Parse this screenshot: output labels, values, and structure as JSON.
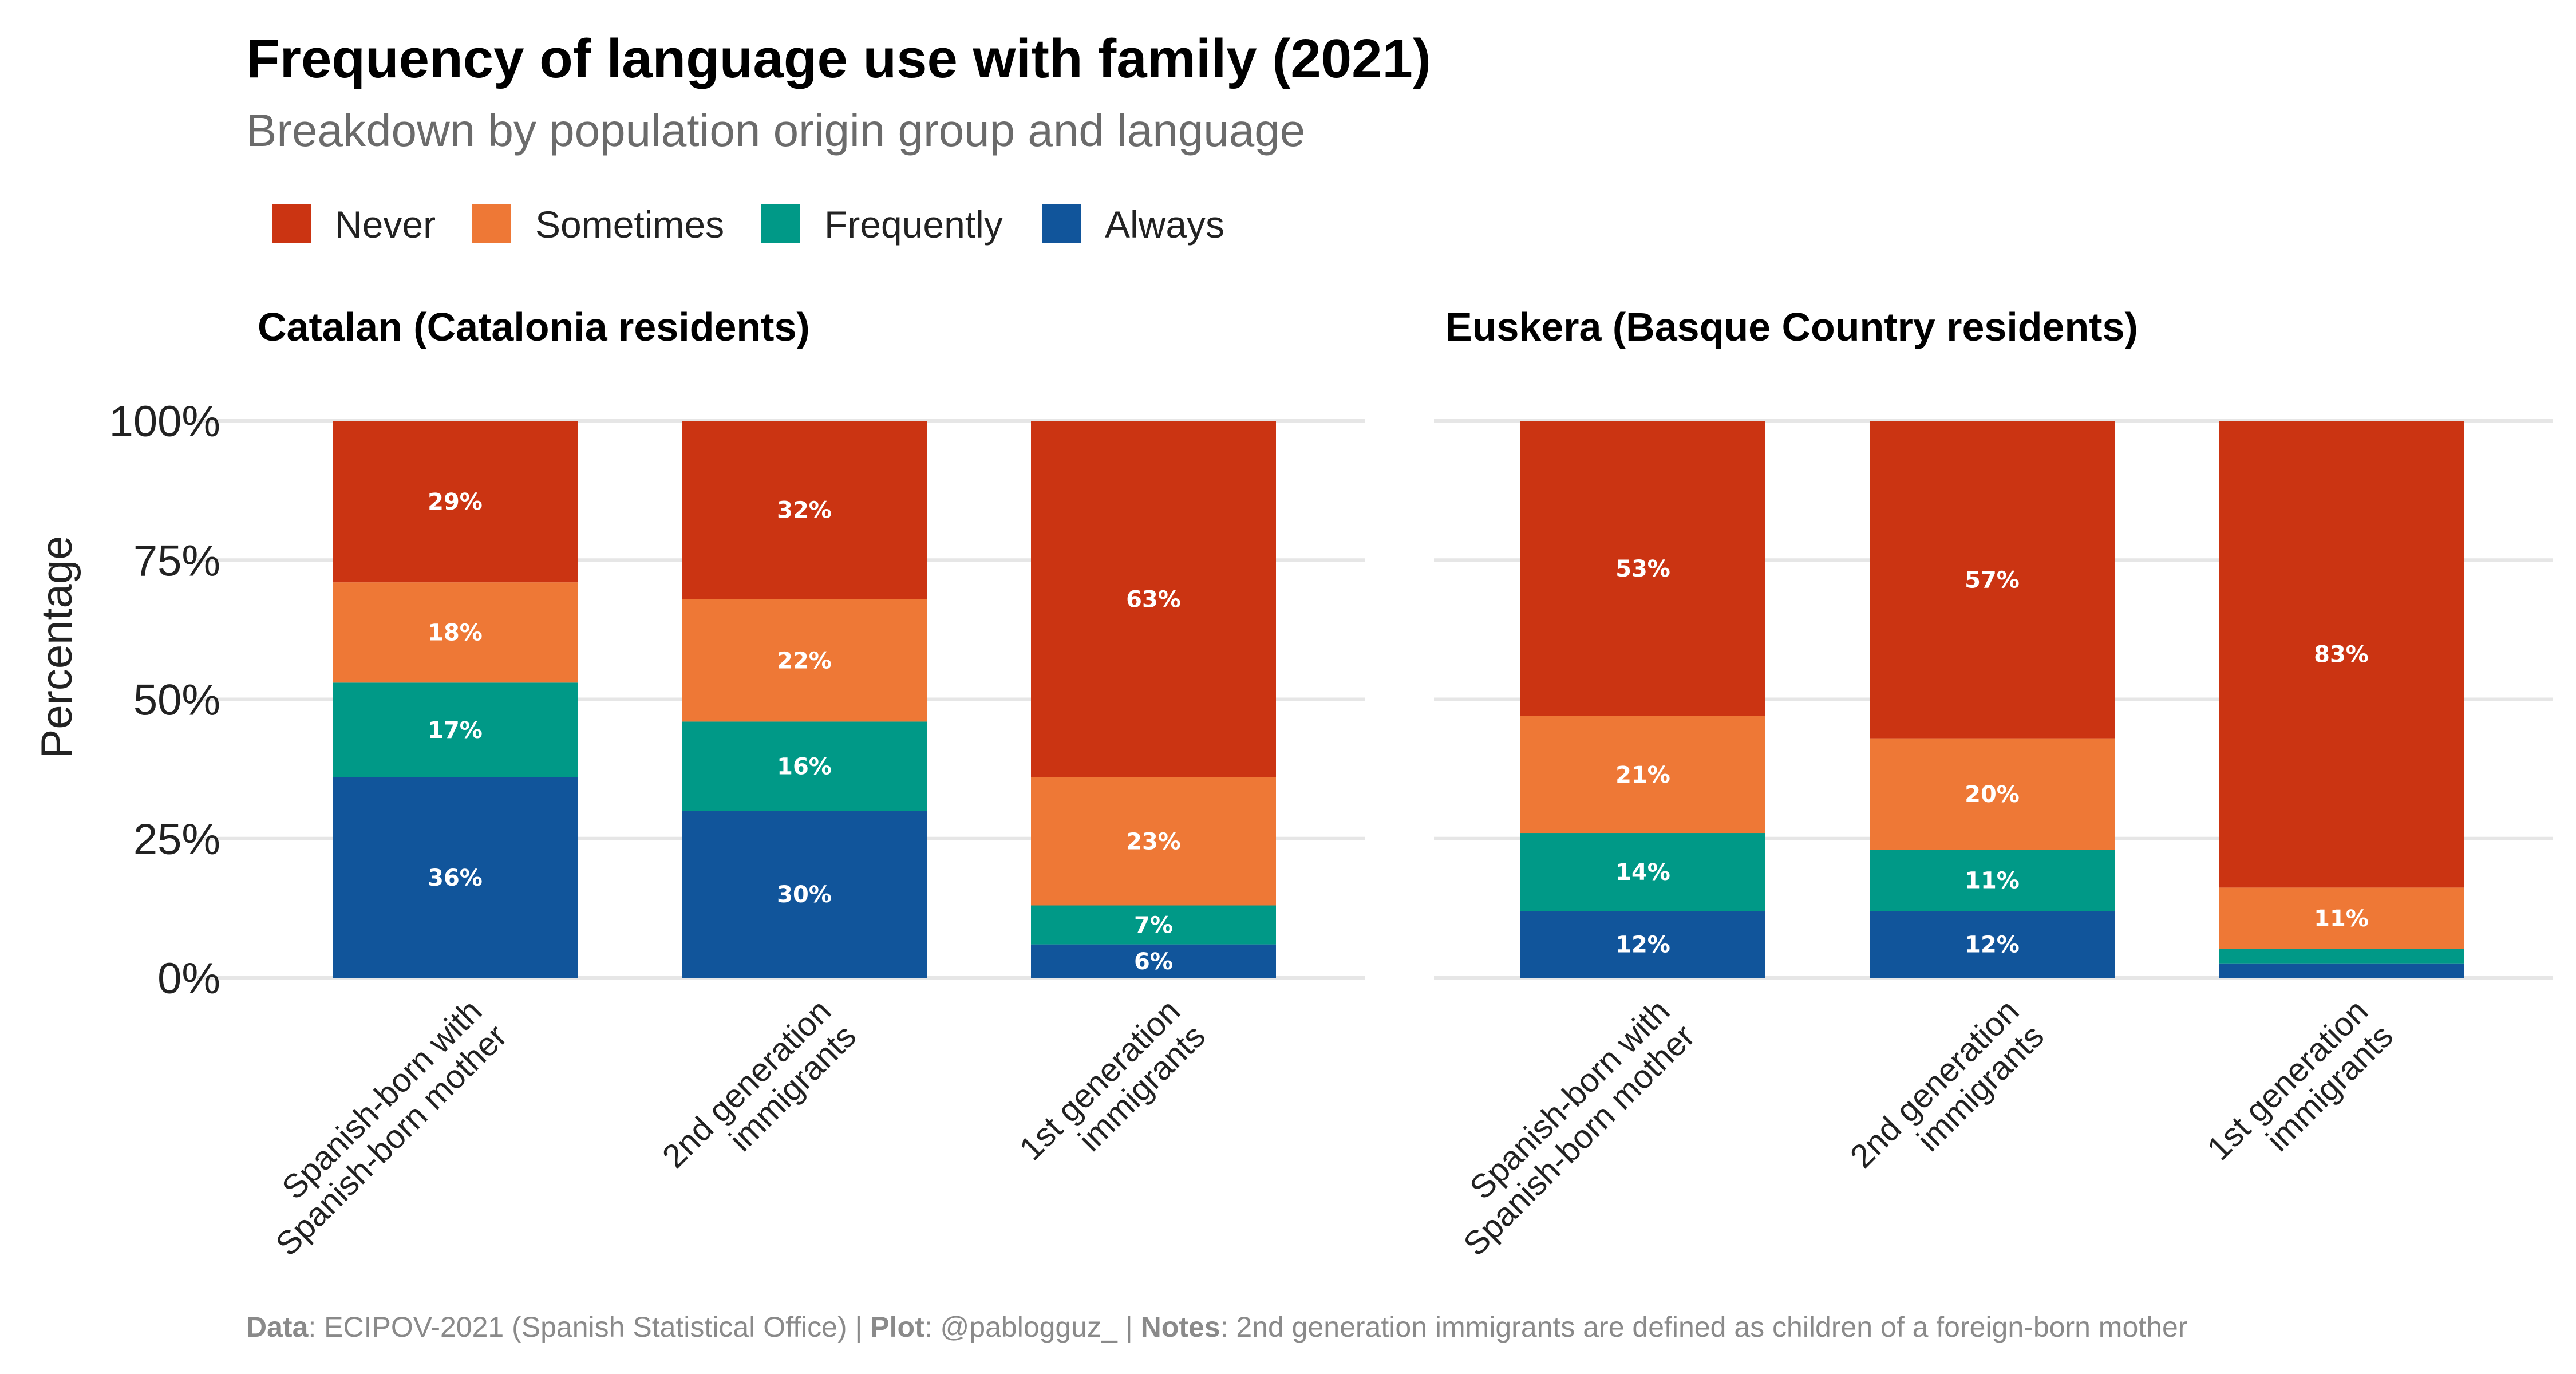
{
  "title": "Frequency of language use with family (2021)",
  "subtitle": "Breakdown by population origin group and language",
  "legend": [
    {
      "label": "Never",
      "color": "#cb3412"
    },
    {
      "label": "Sometimes",
      "color": "#ee7836"
    },
    {
      "label": "Frequently",
      "color": "#009987"
    },
    {
      "label": "Always",
      "color": "#11559b"
    }
  ],
  "y_axis": {
    "title": "Percentage",
    "ticks": [
      "0%",
      "25%",
      "50%",
      "75%",
      "100%"
    ],
    "tick_values": [
      0,
      25,
      50,
      75,
      100
    ]
  },
  "caption": {
    "data_key": "Data",
    "data_value": ": ECIPOV-2021 (Spanish Statistical Office) | ",
    "plot_key": "Plot",
    "plot_value": ": @pablogguz_ | ",
    "notes_key": "Notes",
    "notes_value": ": 2nd generation immigrants are defined as children of a foreign-born mother"
  },
  "chart_data": [
    {
      "type": "bar",
      "stacked": true,
      "title": "Catalan (Catalonia residents)",
      "ylabel": "Percentage",
      "ylim": [
        0,
        100
      ],
      "categories": [
        [
          "Spanish-born with",
          "Spanish-born mother"
        ],
        [
          "2nd generation",
          "immigrants"
        ],
        [
          "1st generation",
          "immigrants"
        ]
      ],
      "series": [
        {
          "name": "Always",
          "values": [
            36,
            30,
            6
          ],
          "labels": [
            "36%",
            "30%",
            "6%"
          ]
        },
        {
          "name": "Frequently",
          "values": [
            17,
            16,
            7
          ],
          "labels": [
            "17%",
            "16%",
            "7%"
          ]
        },
        {
          "name": "Sometimes",
          "values": [
            18,
            22,
            23
          ],
          "labels": [
            "18%",
            "22%",
            "23%"
          ]
        },
        {
          "name": "Never",
          "values": [
            29,
            32,
            63
          ],
          "labels": [
            "29%",
            "32%",
            "63%"
          ]
        }
      ]
    },
    {
      "type": "bar",
      "stacked": true,
      "title": "Euskera (Basque Country residents)",
      "ylabel": "Percentage",
      "ylim": [
        0,
        100
      ],
      "categories": [
        [
          "Spanish-born with",
          "Spanish-born mother"
        ],
        [
          "2nd generation",
          "immigrants"
        ],
        [
          "1st generation",
          "immigrants"
        ]
      ],
      "series": [
        {
          "name": "Always",
          "values": [
            12,
            12,
            2.6
          ],
          "labels": [
            "12%",
            "12%",
            ""
          ]
        },
        {
          "name": "Frequently",
          "values": [
            14,
            11,
            2.6
          ],
          "labels": [
            "14%",
            "11%",
            ""
          ]
        },
        {
          "name": "Sometimes",
          "values": [
            21,
            20,
            11
          ],
          "labels": [
            "21%",
            "20%",
            "11%"
          ]
        },
        {
          "name": "Never",
          "values": [
            53,
            57,
            83
          ],
          "labels": [
            "53%",
            "57%",
            "83%"
          ]
        }
      ]
    }
  ]
}
